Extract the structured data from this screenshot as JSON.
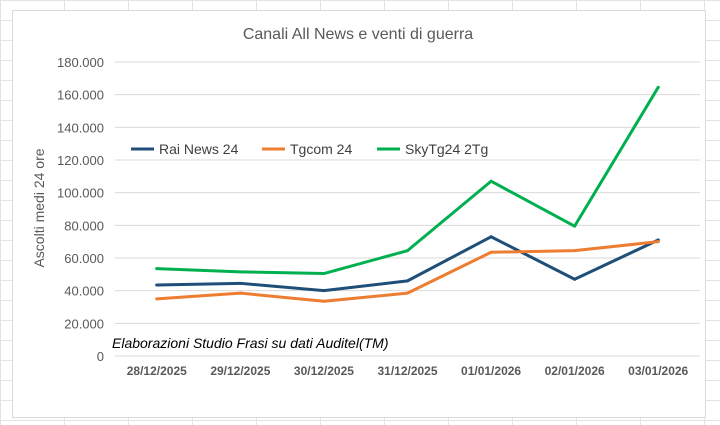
{
  "chart_data": {
    "type": "line",
    "title": "Canali All News e venti di guerra",
    "ylabel": "Ascolti medi 24 ore",
    "xlabel": "",
    "categories": [
      "28/12/2025",
      "29/12/2025",
      "30/12/2025",
      "31/12/2025",
      "01/01/2026",
      "02/01/2026",
      "03/01/2026"
    ],
    "ylim": [
      0,
      180000
    ],
    "yticks": [
      0,
      20000,
      40000,
      60000,
      80000,
      100000,
      120000,
      140000,
      160000,
      180000
    ],
    "ytick_labels": [
      "0",
      "20.000",
      "40.000",
      "60.000",
      "80.000",
      "100.000",
      "120.000",
      "140.000",
      "160.000",
      "180.000"
    ],
    "grid": true,
    "legend_position": "top-left",
    "annotation": "Elaborazioni Studio Frasi su dati Auditel(TM)",
    "series": [
      {
        "name": "Rai News 24",
        "color": "#1f4e79",
        "values": [
          43500,
          44500,
          40000,
          46000,
          73000,
          47000,
          71000
        ]
      },
      {
        "name": "Tgcom 24",
        "color": "#ed7d31",
        "values": [
          35000,
          38500,
          33500,
          38500,
          63500,
          64500,
          70000
        ]
      },
      {
        "name": "SkyTg24 2Tg",
        "color": "#00b050",
        "values": [
          53500,
          51500,
          50500,
          64500,
          107000,
          79500,
          164500
        ]
      }
    ]
  }
}
